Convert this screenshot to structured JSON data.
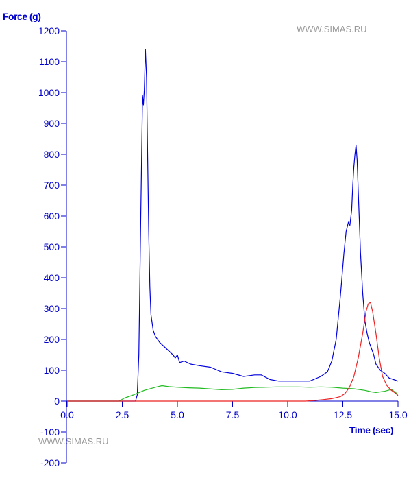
{
  "chart_data": {
    "type": "line",
    "title": "",
    "ylabel": "Force (g)",
    "xlabel": "Time (sec)",
    "xlim": [
      0,
      15
    ],
    "ylim": [
      -200,
      1200
    ],
    "x_ticks": [
      0,
      2.5,
      5,
      7.5,
      10,
      12.5,
      15
    ],
    "x_tick_labels": [
      "0.0",
      "2.5",
      "5.0",
      "7.5",
      "10.0",
      "12.5",
      "15.0"
    ],
    "y_ticks": [
      -200,
      -100,
      0,
      100,
      200,
      300,
      400,
      500,
      600,
      700,
      800,
      900,
      1000,
      1100,
      1200
    ],
    "y_tick_labels": [
      "-200",
      "-100",
      "0",
      "100",
      "200",
      "300",
      "400",
      "500",
      "600",
      "700",
      "800",
      "900",
      "1000",
      "1100",
      "1200"
    ],
    "grid": false,
    "legend": "none",
    "colors": {
      "axis": "#0000cc",
      "text": "#0000cc",
      "watermark": "#9a9a9a"
    },
    "watermarks": [
      "WWW.SIMAS.RU",
      "WWW.SIMAS.RU"
    ],
    "series": [
      {
        "color": "#0000dd",
        "x": [
          0,
          3.1,
          3.18,
          3.25,
          3.32,
          3.38,
          3.42,
          3.46,
          3.5,
          3.55,
          3.6,
          3.65,
          3.7,
          3.75,
          3.8,
          3.9,
          4.0,
          4.2,
          4.5,
          4.8,
          4.9,
          5.0,
          5.1,
          5.3,
          5.6,
          6.0,
          6.5,
          7.0,
          7.5,
          8.0,
          8.5,
          8.8,
          9.2,
          9.6,
          10.0,
          10.5,
          11.0,
          11.5,
          11.8,
          12.0,
          12.2,
          12.4,
          12.55,
          12.65,
          12.75,
          12.82,
          12.9,
          12.95,
          13.0,
          13.05,
          13.1,
          13.15,
          13.2,
          13.3,
          13.4,
          13.5,
          13.6,
          13.7,
          13.8,
          13.9,
          14.0,
          14.2,
          14.4,
          14.6,
          14.8,
          15.0
        ],
        "y": [
          0,
          0,
          20,
          150,
          500,
          800,
          990,
          960,
          1010,
          1140,
          1050,
          800,
          550,
          370,
          280,
          230,
          210,
          190,
          170,
          150,
          140,
          150,
          125,
          130,
          120,
          115,
          110,
          95,
          90,
          80,
          85,
          85,
          70,
          65,
          65,
          65,
          65,
          80,
          95,
          130,
          200,
          350,
          480,
          550,
          580,
          570,
          620,
          700,
          760,
          800,
          830,
          780,
          680,
          480,
          350,
          260,
          220,
          190,
          170,
          150,
          120,
          100,
          90,
          75,
          70,
          65
        ]
      },
      {
        "color": "#22bb22",
        "x": [
          0,
          2.35,
          2.6,
          3.0,
          3.5,
          4.0,
          4.3,
          4.6,
          5.0,
          5.5,
          6.0,
          7.0,
          7.5,
          8.0,
          8.5,
          9.0,
          9.5,
          10.0,
          10.5,
          11.0,
          11.5,
          12.0,
          12.5,
          13.0,
          13.5,
          13.8,
          14.0,
          14.4,
          14.7,
          15.0
        ],
        "y": [
          0,
          0,
          10,
          20,
          35,
          45,
          50,
          47,
          45,
          43,
          42,
          37,
          38,
          42,
          44,
          45,
          46,
          46,
          46,
          45,
          46,
          45,
          42,
          40,
          35,
          30,
          28,
          32,
          38,
          22
        ]
      },
      {
        "color": "#ee2222",
        "x": [
          0,
          10.8,
          11.2,
          11.6,
          12.0,
          12.4,
          12.6,
          12.8,
          13.0,
          13.2,
          13.4,
          13.55,
          13.65,
          13.75,
          13.85,
          14.0,
          14.15,
          14.3,
          14.5,
          14.7,
          14.9,
          15.0
        ],
        "y": [
          0,
          0,
          2,
          5,
          8,
          15,
          25,
          45,
          80,
          140,
          220,
          290,
          315,
          320,
          290,
          220,
          140,
          80,
          50,
          35,
          25,
          18
        ]
      }
    ]
  }
}
